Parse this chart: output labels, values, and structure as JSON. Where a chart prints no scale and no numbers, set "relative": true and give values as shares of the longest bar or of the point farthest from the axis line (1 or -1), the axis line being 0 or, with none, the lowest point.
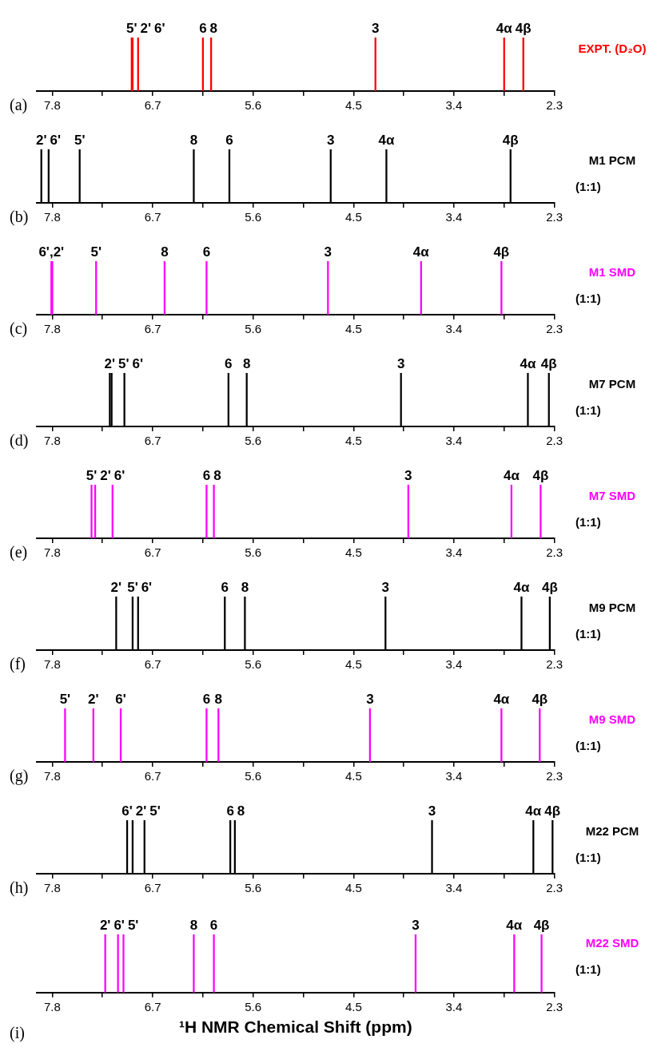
{
  "chart_data": [
    {
      "type": "bar",
      "relative": true,
      "xlim": [
        7.97,
        2.3
      ],
      "xticks": [
        7.8,
        {
          "value": 7.25,
          "label": null
        },
        6.7,
        {
          "value": 6.15,
          "label": null
        },
        5.6,
        {
          "value": 5.05,
          "label": null
        },
        4.5,
        {
          "value": 3.95,
          "label": null
        },
        3.4,
        {
          "value": 2.85,
          "label": null
        },
        2.3
      ],
      "x": [
        6.93,
        6.92,
        6.86,
        6.15,
        6.06,
        4.26,
        2.85,
        2.64
      ],
      "series": [
        {
          "name": "EXPT. (D₂O)",
          "color": "#ff0000",
          "values": [
            1,
            1,
            1,
            1,
            1,
            1,
            1,
            1
          ]
        }
      ],
      "annotations": [
        "(a)",
        {
          "text": "5'",
          "x": 6.93,
          "y": 1
        },
        {
          "text": "2'",
          "x": 6.92,
          "y": 1
        },
        {
          "text": "6'",
          "x": 6.86,
          "y": 1
        },
        {
          "text": "6",
          "x": 6.15,
          "y": 1
        },
        {
          "text": "8",
          "x": 6.06,
          "y": 1
        },
        {
          "text": "3",
          "x": 4.26,
          "y": 1
        },
        {
          "text": "4α",
          "x": 2.85,
          "y": 1
        },
        {
          "text": "4β",
          "x": 2.64,
          "y": 1
        }
      ]
    },
    {
      "type": "bar",
      "relative": true,
      "xlim": [
        7.97,
        2.3
      ],
      "xticks": [
        7.8,
        {
          "value": 7.25,
          "label": null
        },
        6.7,
        {
          "value": 6.15,
          "label": null
        },
        5.6,
        {
          "value": 5.05,
          "label": null
        },
        4.5,
        {
          "value": 3.95,
          "label": null
        },
        3.4,
        {
          "value": 2.85,
          "label": null
        },
        2.3
      ],
      "x": [
        7.92,
        7.84,
        7.5,
        6.25,
        5.86,
        4.75,
        4.14,
        2.78
      ],
      "series": [
        {
          "name": "M1 PCM",
          "color": "#000000",
          "values": [
            1,
            1,
            1,
            1,
            1,
            1,
            1,
            1
          ]
        }
      ],
      "annotations": [
        "(b)",
        "(1:1)",
        {
          "text": "2'",
          "x": 7.92,
          "y": 1
        },
        {
          "text": "6'",
          "x": 7.84,
          "y": 1
        },
        {
          "text": "5'",
          "x": 7.5,
          "y": 1
        },
        {
          "text": "8",
          "x": 6.25,
          "y": 1
        },
        {
          "text": "6",
          "x": 5.86,
          "y": 1
        },
        {
          "text": "3",
          "x": 4.75,
          "y": 1
        },
        {
          "text": "4α",
          "x": 4.14,
          "y": 1
        },
        {
          "text": "4β",
          "x": 2.78,
          "y": 1
        }
      ]
    },
    {
      "type": "bar",
      "relative": true,
      "xlim": [
        7.97,
        2.3
      ],
      "xticks": [
        7.8,
        {
          "value": 7.25,
          "label": null
        },
        6.7,
        {
          "value": 6.15,
          "label": null
        },
        5.6,
        {
          "value": 5.05,
          "label": null
        },
        4.5,
        {
          "value": 3.95,
          "label": null
        },
        3.4,
        {
          "value": 2.85,
          "label": null
        },
        2.3
      ],
      "x": [
        7.81,
        7.8,
        7.32,
        6.57,
        6.11,
        4.78,
        3.76,
        2.88
      ],
      "series": [
        {
          "name": "M1 SMD",
          "color": "#ff00ff",
          "values": [
            1,
            1,
            1,
            1,
            1,
            1,
            1,
            1
          ]
        }
      ],
      "annotations": [
        "(c)",
        "(1:1)",
        {
          "text": "6',2'",
          "x": 7.81,
          "y": 1
        },
        {
          "text": "5'",
          "x": 7.32,
          "y": 1
        },
        {
          "text": "8",
          "x": 6.57,
          "y": 1
        },
        {
          "text": "6",
          "x": 6.11,
          "y": 1
        },
        {
          "text": "3",
          "x": 4.78,
          "y": 1
        },
        {
          "text": "4α",
          "x": 3.76,
          "y": 1
        },
        {
          "text": "4β",
          "x": 2.88,
          "y": 1
        }
      ]
    },
    {
      "type": "bar",
      "relative": true,
      "xlim": [
        7.97,
        2.3
      ],
      "xticks": [
        7.8,
        {
          "value": 7.25,
          "label": null
        },
        6.7,
        {
          "value": 6.15,
          "label": null
        },
        5.6,
        {
          "value": 5.05,
          "label": null
        },
        4.5,
        {
          "value": 3.95,
          "label": null
        },
        3.4,
        {
          "value": 2.85,
          "label": null
        },
        2.3
      ],
      "x": [
        7.17,
        7.15,
        7.01,
        5.87,
        5.67,
        3.98,
        2.59,
        2.36
      ],
      "series": [
        {
          "name": "M7 PCM",
          "color": "#000000",
          "values": [
            1,
            1,
            1,
            1,
            1,
            1,
            1,
            1
          ]
        }
      ],
      "annotations": [
        "(d)",
        "(1:1)",
        {
          "text": "2'",
          "x": 7.17,
          "y": 1
        },
        {
          "text": "5'",
          "x": 7.15,
          "y": 1
        },
        {
          "text": "6'",
          "x": 7.01,
          "y": 1
        },
        {
          "text": "6",
          "x": 5.87,
          "y": 1
        },
        {
          "text": "8",
          "x": 5.67,
          "y": 1
        },
        {
          "text": "3",
          "x": 3.98,
          "y": 1
        },
        {
          "text": "4α",
          "x": 2.59,
          "y": 1
        },
        {
          "text": "4β",
          "x": 2.36,
          "y": 1
        }
      ]
    },
    {
      "type": "bar",
      "relative": true,
      "xlim": [
        7.97,
        2.3
      ],
      "xticks": [
        7.8,
        {
          "value": 7.25,
          "label": null
        },
        6.7,
        {
          "value": 6.15,
          "label": null
        },
        5.6,
        {
          "value": 5.05,
          "label": null
        },
        4.5,
        {
          "value": 3.95,
          "label": null
        },
        3.4,
        {
          "value": 2.85,
          "label": null
        },
        2.3
      ],
      "x": [
        7.37,
        7.33,
        7.14,
        6.11,
        6.03,
        3.9,
        2.77,
        2.45
      ],
      "series": [
        {
          "name": "M7 SMD",
          "color": "#ff00ff",
          "values": [
            1,
            1,
            1,
            1,
            1,
            1,
            1,
            1
          ]
        }
      ],
      "annotations": [
        "(e)",
        "(1:1)",
        {
          "text": "5'",
          "x": 7.37,
          "y": 1
        },
        {
          "text": "2'",
          "x": 7.33,
          "y": 1
        },
        {
          "text": "6'",
          "x": 7.14,
          "y": 1
        },
        {
          "text": "6",
          "x": 6.11,
          "y": 1
        },
        {
          "text": "8",
          "x": 6.03,
          "y": 1
        },
        {
          "text": "3",
          "x": 3.9,
          "y": 1
        },
        {
          "text": "4α",
          "x": 2.77,
          "y": 1
        },
        {
          "text": "4β",
          "x": 2.45,
          "y": 1
        }
      ]
    },
    {
      "type": "bar",
      "relative": true,
      "xlim": [
        7.97,
        2.3
      ],
      "xticks": [
        7.8,
        {
          "value": 7.25,
          "label": null
        },
        6.7,
        {
          "value": 6.15,
          "label": null
        },
        5.6,
        {
          "value": 5.05,
          "label": null
        },
        4.5,
        {
          "value": 3.95,
          "label": null
        },
        3.4,
        {
          "value": 2.85,
          "label": null
        },
        2.3
      ],
      "x": [
        7.1,
        6.92,
        6.86,
        5.91,
        5.69,
        4.15,
        2.66,
        2.35
      ],
      "series": [
        {
          "name": "M9 PCM",
          "color": "#000000",
          "values": [
            1,
            1,
            1,
            1,
            1,
            1,
            1,
            1
          ]
        }
      ],
      "annotations": [
        "(f)",
        "(1:1)",
        {
          "text": "2'",
          "x": 7.1,
          "y": 1
        },
        {
          "text": "5'",
          "x": 6.92,
          "y": 1
        },
        {
          "text": "6'",
          "x": 6.86,
          "y": 1
        },
        {
          "text": "6",
          "x": 5.91,
          "y": 1
        },
        {
          "text": "8",
          "x": 5.69,
          "y": 1
        },
        {
          "text": "3",
          "x": 4.15,
          "y": 1
        },
        {
          "text": "4α",
          "x": 2.66,
          "y": 1
        },
        {
          "text": "4β",
          "x": 2.35,
          "y": 1
        }
      ]
    },
    {
      "type": "bar",
      "relative": true,
      "xlim": [
        7.97,
        2.3
      ],
      "xticks": [
        7.8,
        {
          "value": 7.25,
          "label": null
        },
        6.7,
        {
          "value": 6.15,
          "label": null
        },
        5.6,
        {
          "value": 5.05,
          "label": null
        },
        4.5,
        {
          "value": 3.95,
          "label": null
        },
        3.4,
        {
          "value": 2.85,
          "label": null
        },
        2.3
      ],
      "x": [
        7.66,
        7.35,
        7.05,
        6.11,
        5.98,
        4.32,
        2.88,
        2.46
      ],
      "series": [
        {
          "name": "M9 SMD",
          "color": "#ff00ff",
          "values": [
            1,
            1,
            1,
            1,
            1,
            1,
            1,
            1
          ]
        }
      ],
      "annotations": [
        "(g)",
        "(1:1)",
        {
          "text": "5'",
          "x": 7.66,
          "y": 1
        },
        {
          "text": "2'",
          "x": 7.35,
          "y": 1
        },
        {
          "text": "6'",
          "x": 7.05,
          "y": 1
        },
        {
          "text": "6",
          "x": 6.11,
          "y": 1
        },
        {
          "text": "8",
          "x": 5.98,
          "y": 1
        },
        {
          "text": "3",
          "x": 4.32,
          "y": 1
        },
        {
          "text": "4α",
          "x": 2.88,
          "y": 1
        },
        {
          "text": "4β",
          "x": 2.46,
          "y": 1
        }
      ]
    },
    {
      "type": "bar",
      "relative": true,
      "xlim": [
        7.97,
        2.3
      ],
      "xticks": [
        7.8,
        {
          "value": 7.25,
          "label": null
        },
        6.7,
        {
          "value": 6.15,
          "label": null
        },
        5.6,
        {
          "value": 5.05,
          "label": null
        },
        4.5,
        {
          "value": 3.95,
          "label": null
        },
        3.4,
        {
          "value": 2.85,
          "label": null
        },
        2.3
      ],
      "x": [
        6.98,
        6.92,
        6.79,
        5.85,
        5.8,
        3.64,
        2.53,
        2.32
      ],
      "series": [
        {
          "name": "M22 PCM",
          "color": "#000000",
          "values": [
            1,
            1,
            1,
            1,
            1,
            1,
            1,
            1
          ]
        }
      ],
      "annotations": [
        "(h)",
        "(1:1)",
        {
          "text": "6'",
          "x": 6.98,
          "y": 1
        },
        {
          "text": "2'",
          "x": 6.92,
          "y": 1
        },
        {
          "text": "5'",
          "x": 6.79,
          "y": 1
        },
        {
          "text": "6",
          "x": 5.85,
          "y": 1
        },
        {
          "text": "8",
          "x": 5.8,
          "y": 1
        },
        {
          "text": "3",
          "x": 3.64,
          "y": 1
        },
        {
          "text": "4α",
          "x": 2.53,
          "y": 1
        },
        {
          "text": "4β",
          "x": 2.32,
          "y": 1
        }
      ]
    },
    {
      "type": "bar",
      "xlabel": "¹H NMR Chemical Shift (ppm)",
      "relative": true,
      "xlim": [
        7.97,
        2.3
      ],
      "xticks": [
        7.8,
        {
          "value": 7.25,
          "label": null
        },
        6.7,
        {
          "value": 6.15,
          "label": null
        },
        5.6,
        {
          "value": 5.05,
          "label": null
        },
        4.5,
        {
          "value": 3.95,
          "label": null
        },
        3.4,
        {
          "value": 2.85,
          "label": null
        },
        2.3
      ],
      "x": [
        7.22,
        7.08,
        7.02,
        6.25,
        6.03,
        3.82,
        2.74,
        2.44
      ],
      "series": [
        {
          "name": "M22 SMD",
          "color": "#ff00ff",
          "values": [
            1,
            1,
            1,
            1,
            1,
            1,
            1,
            1
          ]
        }
      ],
      "annotations": [
        "(i)",
        "(1:1)",
        {
          "text": "2'",
          "x": 7.22,
          "y": 1
        },
        {
          "text": "6'",
          "x": 7.08,
          "y": 1
        },
        {
          "text": "5'",
          "x": 7.02,
          "y": 1
        },
        {
          "text": "8",
          "x": 6.25,
          "y": 1
        },
        {
          "text": "6",
          "x": 6.03,
          "y": 1
        },
        {
          "text": "3",
          "x": 3.82,
          "y": 1
        },
        {
          "text": "4α",
          "x": 2.74,
          "y": 1
        },
        {
          "text": "4β",
          "x": 2.44,
          "y": 1
        }
      ]
    }
  ]
}
